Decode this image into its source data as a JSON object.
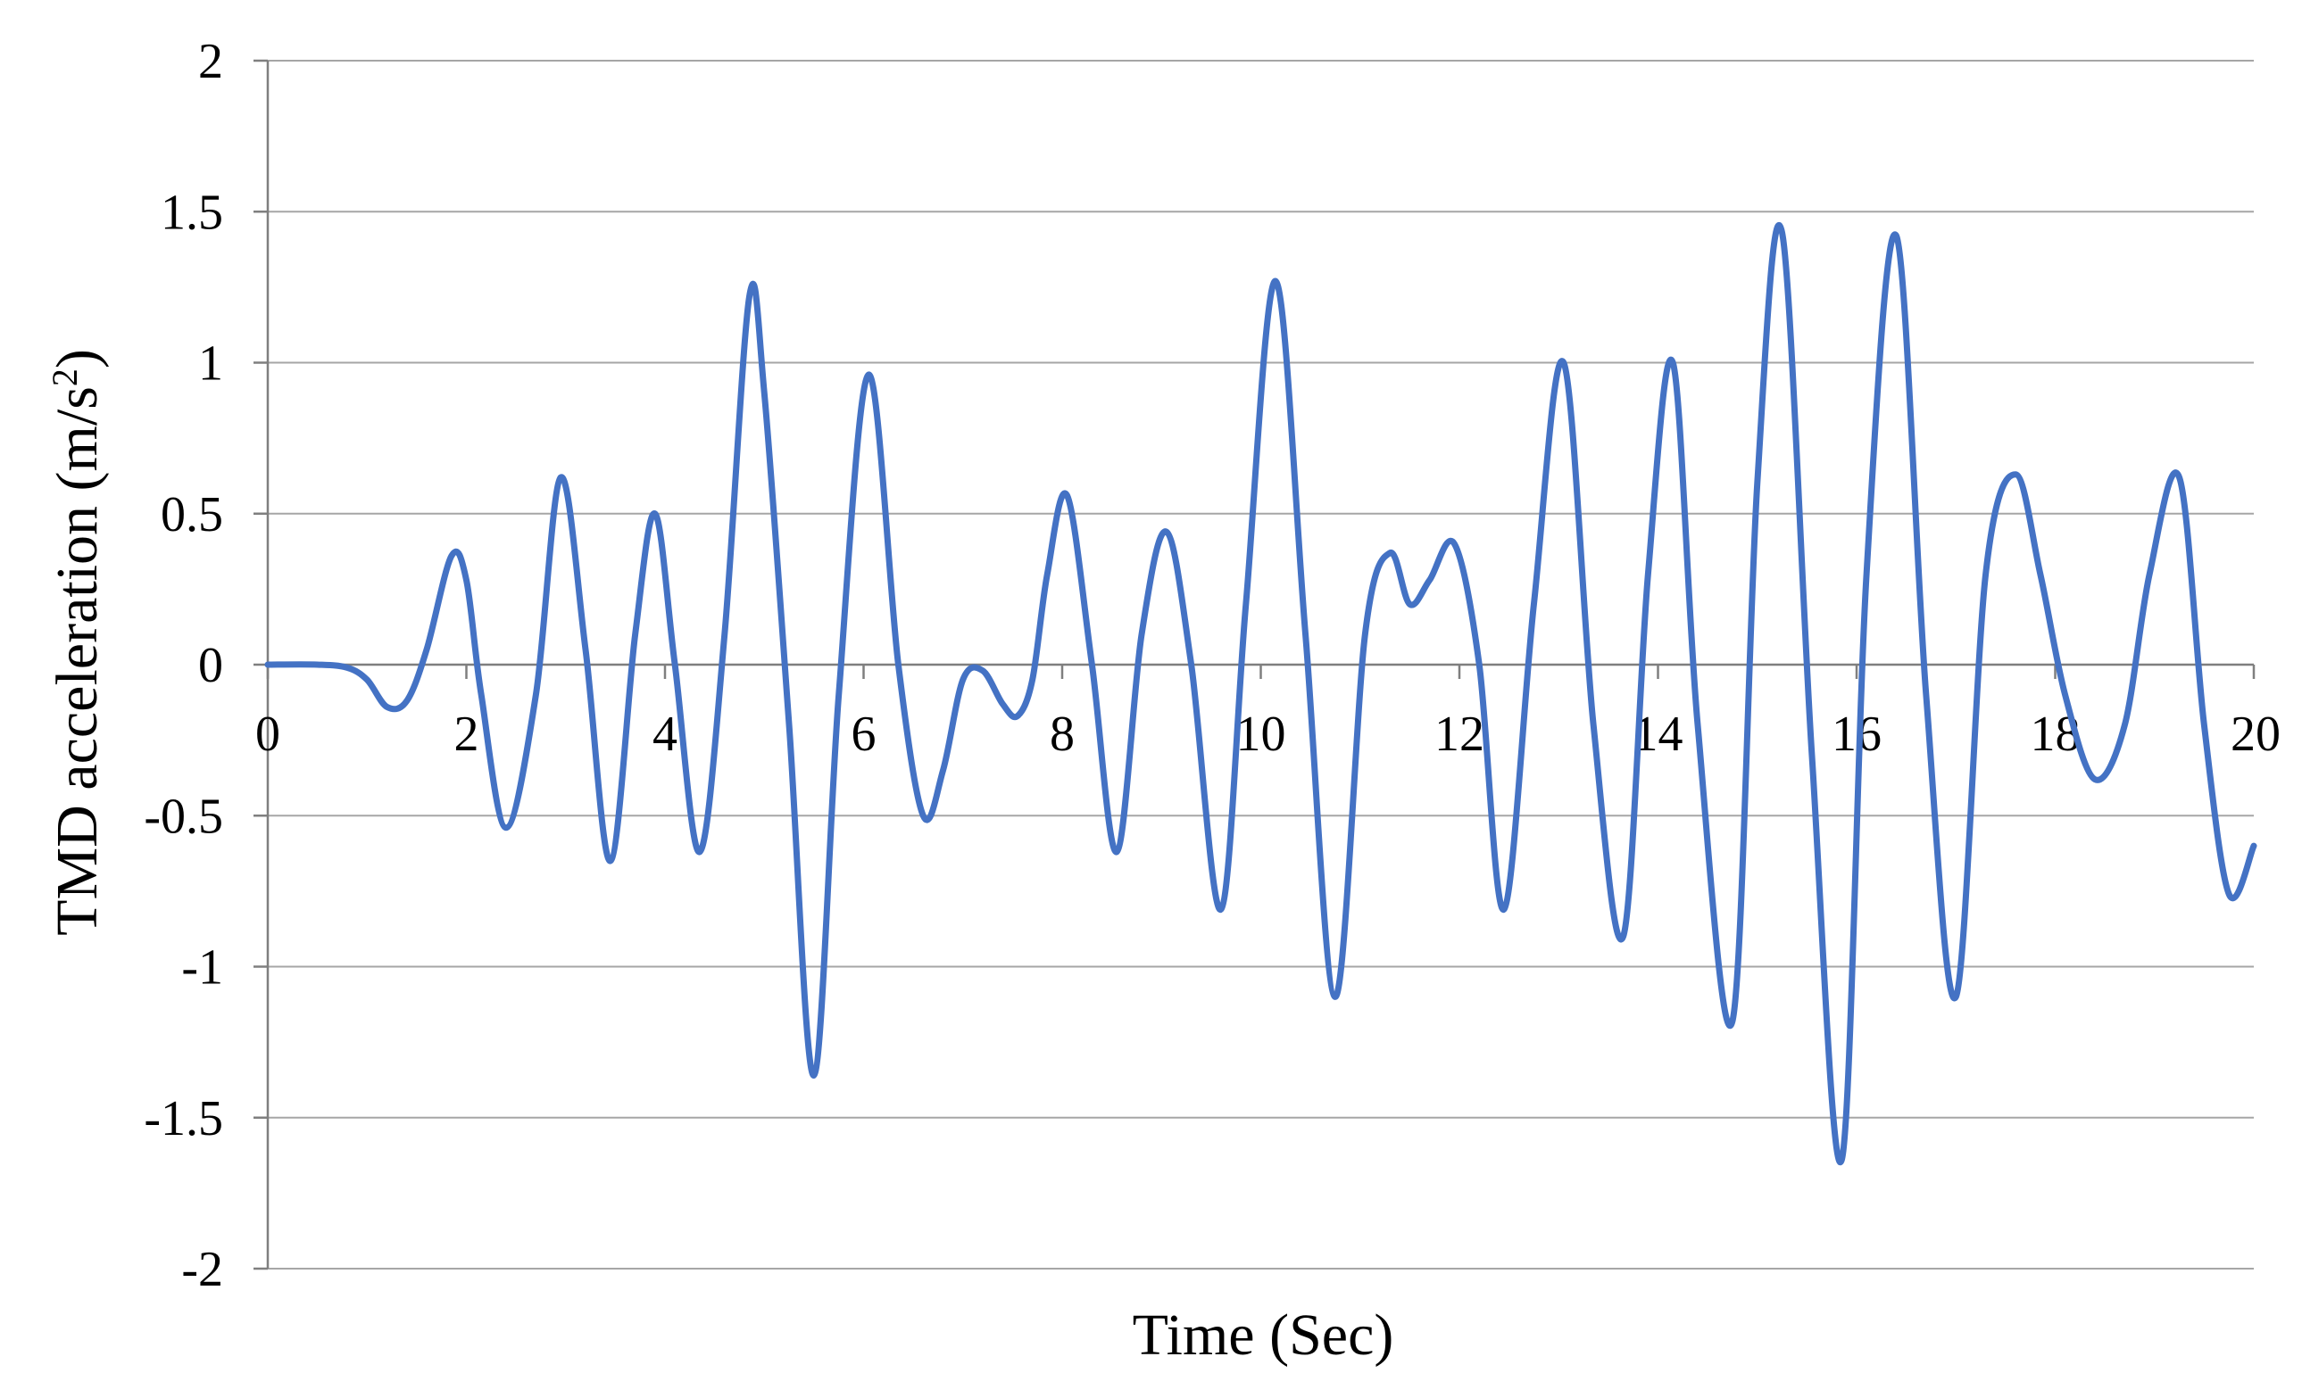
{
  "chart_data": {
    "type": "line",
    "title": "",
    "xlabel": "Time (Sec)",
    "ylabel": {
      "main": "TMD acceleration  (m/s",
      "sup": "2",
      "end": ")"
    },
    "xlim": [
      0,
      20
    ],
    "ylim": [
      -2,
      2
    ],
    "xticks": [
      0,
      2,
      4,
      6,
      8,
      10,
      12,
      14,
      16,
      18,
      20
    ],
    "yticks": [
      2,
      1.5,
      1,
      0.5,
      0,
      -0.5,
      -1,
      -1.5,
      -2
    ],
    "grid": "horizontal",
    "legend": "none",
    "colors": {
      "series": "#4472c4"
    },
    "series": [
      {
        "x": [
          0,
          0.5,
          0.8,
          1.0,
          1.2,
          1.4,
          1.6,
          1.85,
          2.0,
          2.15,
          2.4,
          2.7,
          2.95,
          3.2,
          3.45,
          3.7,
          3.9,
          4.1,
          4.35,
          4.6,
          4.85,
          5.0,
          5.25,
          5.5,
          5.75,
          6.05,
          6.35,
          6.6,
          6.8,
          7.0,
          7.2,
          7.4,
          7.55,
          7.7,
          7.85,
          8.05,
          8.3,
          8.55,
          8.8,
          9.05,
          9.3,
          9.6,
          9.85,
          10.15,
          10.45,
          10.75,
          11.05,
          11.3,
          11.5,
          11.7,
          11.95,
          12.2,
          12.45,
          12.75,
          13.05,
          13.35,
          13.65,
          13.9,
          14.15,
          14.4,
          14.75,
          15.0,
          15.25,
          15.55,
          15.85,
          16.1,
          16.4,
          16.7,
          17.0,
          17.3,
          17.6,
          17.85,
          18.1,
          18.4,
          18.7,
          18.95,
          19.25,
          19.5,
          19.75,
          20.0
        ],
        "y": [
          0,
          0,
          -0.01,
          -0.05,
          -0.14,
          -0.12,
          0.05,
          0.36,
          0.28,
          -0.1,
          -0.54,
          -0.1,
          0.62,
          0.05,
          -0.65,
          0.1,
          0.5,
          0.0,
          -0.62,
          0.1,
          1.22,
          0.9,
          -0.2,
          -1.36,
          -0.1,
          0.96,
          0.0,
          -0.5,
          -0.35,
          -0.05,
          -0.02,
          -0.13,
          -0.17,
          -0.05,
          0.3,
          0.56,
          0.0,
          -0.62,
          0.1,
          0.44,
          0.0,
          -0.81,
          0.2,
          1.27,
          0.1,
          -1.1,
          0.1,
          0.37,
          0.2,
          0.28,
          0.4,
          0.0,
          -0.81,
          0.2,
          1.0,
          -0.2,
          -0.9,
          0.3,
          1.0,
          -0.2,
          -1.18,
          0.6,
          1.43,
          -0.3,
          -1.64,
          0.3,
          1.42,
          -0.1,
          -1.1,
          0.3,
          0.63,
          0.3,
          -0.1,
          -0.38,
          -0.2,
          0.3,
          0.62,
          -0.2,
          -0.76,
          -0.6
        ]
      }
    ]
  }
}
